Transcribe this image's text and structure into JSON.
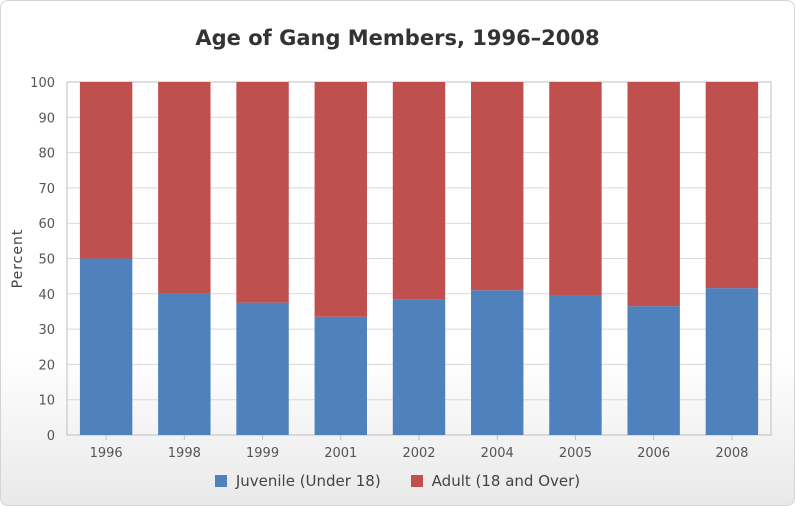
{
  "chart_data": {
    "type": "bar",
    "stacked": true,
    "title": "Age of Gang Members, 1996–2008",
    "ylabel": "Percent",
    "xlabel": "",
    "ylim": [
      0,
      100
    ],
    "yticks": [
      0,
      10,
      20,
      30,
      40,
      50,
      60,
      70,
      80,
      90,
      100
    ],
    "grid": true,
    "legend_position": "bottom",
    "categories": [
      "1996",
      "1998",
      "1999",
      "2001",
      "2002",
      "2004",
      "2005",
      "2006",
      "2008"
    ],
    "series": [
      {
        "name": "Juvenile (Under 18)",
        "color": "#4f81bd",
        "values": [
          50,
          40,
          37.5,
          33.5,
          38.3,
          41,
          39.4,
          36.5,
          41.6
        ]
      },
      {
        "name": "Adult (18 and Over)",
        "color": "#c0504d",
        "values": [
          50,
          60,
          62.5,
          66.5,
          61.7,
          59,
          60.6,
          63.5,
          58.4
        ]
      }
    ]
  }
}
